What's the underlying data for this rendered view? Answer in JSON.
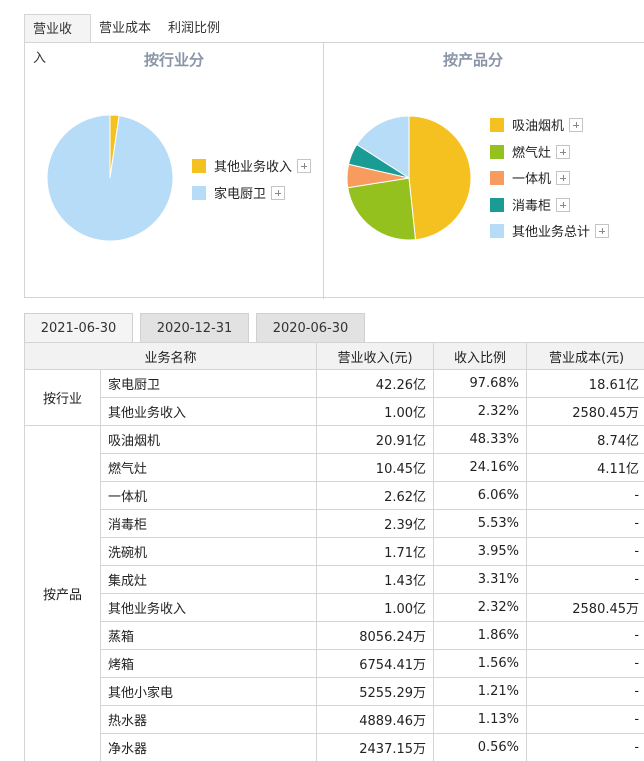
{
  "tabs": [
    {
      "label": "营业收入",
      "active": true
    },
    {
      "label": "营业成本",
      "active": false
    },
    {
      "label": "利润比例",
      "active": false
    }
  ],
  "chart_data": [
    {
      "type": "pie",
      "title": "按行业分",
      "legend_position": "right",
      "categories": [
        "其他业务收入",
        "家电厨卫"
      ],
      "values": [
        2.32,
        97.68
      ],
      "colors": [
        "#f5c120",
        "#b7dcf7"
      ]
    },
    {
      "type": "pie",
      "title": "按产品分",
      "legend_position": "right",
      "categories": [
        "吸油烟机",
        "燃气灶",
        "一体机",
        "消毒柜",
        "其他业务总计"
      ],
      "values": [
        48.33,
        24.16,
        6.06,
        5.53,
        15.92
      ],
      "colors": [
        "#f5c120",
        "#95c11f",
        "#f79b5e",
        "#1a9c95",
        "#b7dcf7"
      ]
    }
  ],
  "date_tabs": [
    {
      "label": "2021-06-30",
      "active": true
    },
    {
      "label": "2020-12-31",
      "active": false
    },
    {
      "label": "2020-06-30",
      "active": false
    }
  ],
  "table": {
    "headers": [
      "业务名称",
      "营业收入(元)",
      "收入比例",
      "营业成本(元)"
    ],
    "groups": [
      {
        "label": "按行业",
        "rows": [
          {
            "name": "家电厨卫",
            "revenue": "42.26亿",
            "ratio": "97.68%",
            "cost": "18.61亿"
          },
          {
            "name": "其他业务收入",
            "revenue": "1.00亿",
            "ratio": "2.32%",
            "cost": "2580.45万"
          }
        ]
      },
      {
        "label": "按产品",
        "rows": [
          {
            "name": "吸油烟机",
            "revenue": "20.91亿",
            "ratio": "48.33%",
            "cost": "8.74亿"
          },
          {
            "name": "燃气灶",
            "revenue": "10.45亿",
            "ratio": "24.16%",
            "cost": "4.11亿"
          },
          {
            "name": "一体机",
            "revenue": "2.62亿",
            "ratio": "6.06%",
            "cost": "-"
          },
          {
            "name": "消毒柜",
            "revenue": "2.39亿",
            "ratio": "5.53%",
            "cost": "-"
          },
          {
            "name": "洗碗机",
            "revenue": "1.71亿",
            "ratio": "3.95%",
            "cost": "-"
          },
          {
            "name": "集成灶",
            "revenue": "1.43亿",
            "ratio": "3.31%",
            "cost": "-"
          },
          {
            "name": "其他业务收入",
            "revenue": "1.00亿",
            "ratio": "2.32%",
            "cost": "2580.45万"
          },
          {
            "name": "蒸箱",
            "revenue": "8056.24万",
            "ratio": "1.86%",
            "cost": "-"
          },
          {
            "name": "烤箱",
            "revenue": "6754.41万",
            "ratio": "1.56%",
            "cost": "-"
          },
          {
            "name": "其他小家电",
            "revenue": "5255.29万",
            "ratio": "1.21%",
            "cost": "-"
          },
          {
            "name": "热水器",
            "revenue": "4889.46万",
            "ratio": "1.13%",
            "cost": "-"
          },
          {
            "name": "净水器",
            "revenue": "2437.15万",
            "ratio": "0.56%",
            "cost": "-"
          }
        ]
      }
    ]
  }
}
